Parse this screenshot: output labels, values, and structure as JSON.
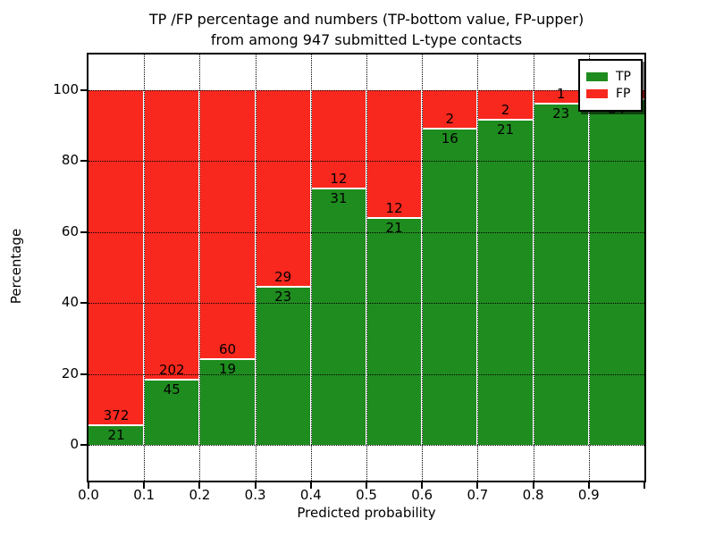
{
  "title": {
    "line1": "TP /FP percentage and numbers (TP-bottom value, FP-upper)",
    "line2": "from among 947 submitted L-type contacts"
  },
  "axes": {
    "xlabel": "Predicted probability",
    "ylabel": "Percentage",
    "xticks": [
      "0.0",
      "0.1",
      "0.2",
      "0.3",
      "0.4",
      "0.5",
      "0.6",
      "0.7",
      "0.8",
      "0.9"
    ],
    "yticks": [
      0,
      20,
      40,
      60,
      80,
      100
    ],
    "xlim": [
      0,
      1
    ],
    "ylim": [
      -10,
      110
    ],
    "grid_style": "dotted"
  },
  "legend": {
    "position": "upper-right",
    "items": [
      {
        "label": "TP",
        "color": "#1f8c1f"
      },
      {
        "label": "FP",
        "color": "#f8281e"
      }
    ]
  },
  "colors": {
    "tp": "#1f8c1f",
    "fp": "#f8281e",
    "text": "#000000",
    "frame": "#000000",
    "background": "#ffffff"
  },
  "chart_data": {
    "type": "bar",
    "stacked": true,
    "title": "TP /FP percentage and numbers (TP-bottom value, FP-upper) from among 947 submitted L-type contacts",
    "total_contacts": 947,
    "xlabel": "Predicted probability",
    "ylabel": "Percentage",
    "xlim": [
      0,
      1
    ],
    "ylim": [
      -10,
      110
    ],
    "bin_width": 0.1,
    "categories": [
      "0.0-0.1",
      "0.1-0.2",
      "0.2-0.3",
      "0.3-0.4",
      "0.4-0.5",
      "0.5-0.6",
      "0.6-0.7",
      "0.7-0.8",
      "0.8-0.9",
      "0.9-1.0"
    ],
    "series": [
      {
        "name": "TP",
        "counts": [
          21,
          45,
          19,
          23,
          31,
          21,
          16,
          21,
          23,
          34
        ],
        "pct": [
          5.34,
          18.22,
          24.05,
          44.23,
          72.09,
          63.64,
          88.89,
          91.3,
          95.83,
          97.14
        ]
      },
      {
        "name": "FP",
        "counts": [
          372,
          202,
          60,
          29,
          12,
          12,
          2,
          2,
          1,
          1
        ],
        "pct": [
          94.66,
          81.78,
          75.95,
          55.77,
          27.91,
          36.36,
          11.11,
          8.7,
          4.17,
          2.86
        ]
      }
    ],
    "bar_labels": {
      "tp": [
        "21",
        "45",
        "19",
        "23",
        "31",
        "21",
        "16",
        "21",
        "23",
        "34"
      ],
      "fp": [
        "372",
        "202",
        "60",
        "29",
        "12",
        "12",
        "2",
        "2",
        "1",
        ""
      ]
    }
  }
}
